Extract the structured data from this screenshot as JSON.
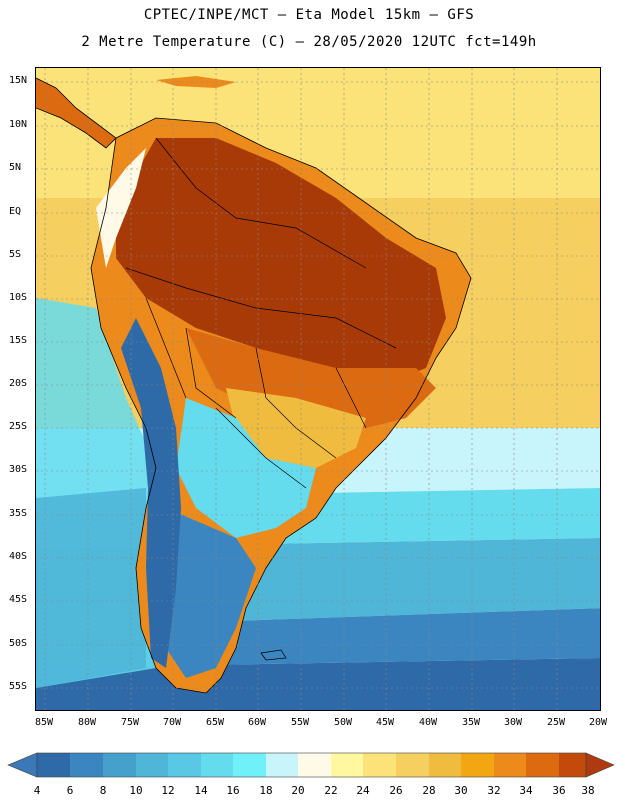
{
  "header": {
    "line1": "CPTEC/INPE/MCT –  Eta Model 15km – GFS",
    "line2": "2 Metre Temperature (C) – 28/05/2020 12UTC fct=149h"
  },
  "axes": {
    "lat_labels": [
      "15N",
      "10N",
      "5N",
      "EQ",
      "5S",
      "10S",
      "15S",
      "20S",
      "25S",
      "30S",
      "35S",
      "40S",
      "45S",
      "50S",
      "55S"
    ],
    "lon_labels": [
      "85W",
      "80W",
      "75W",
      "70W",
      "65W",
      "60W",
      "55W",
      "50W",
      "45W",
      "40W",
      "35W",
      "30W",
      "25W",
      "20W"
    ]
  },
  "colorbar": {
    "ticks": [
      "4",
      "6",
      "8",
      "10",
      "12",
      "14",
      "16",
      "18",
      "20",
      "22",
      "24",
      "26",
      "28",
      "30",
      "32",
      "34",
      "36",
      "38"
    ],
    "low_color": "#3a78b8",
    "high_color": "#b03a10",
    "bins": [
      "#2f6aa8",
      "#3b86c0",
      "#45a0cc",
      "#4fb6d8",
      "#58c8e4",
      "#64dcee",
      "#70f0f8",
      "#c8f4fc",
      "#fffae8",
      "#fff8a0",
      "#fbe37a",
      "#f5d060",
      "#f0bc40",
      "#f2a612",
      "#ec8a1c",
      "#dc6a10",
      "#c44a0c"
    ]
  },
  "map": {
    "ocean_colors": [
      "#fbe37a",
      "#f5d060",
      "#64dcee",
      "#4fb6d8",
      "#45a0cc",
      "#3b86c0",
      "#2f6aa8"
    ],
    "land_colors": [
      "#c44a0c",
      "#a83a08",
      "#dc6a10",
      "#ec8a1c",
      "#f2a612",
      "#f0bc40",
      "#fffae8",
      "#4fb6d8",
      "#2f6aa8"
    ]
  }
}
